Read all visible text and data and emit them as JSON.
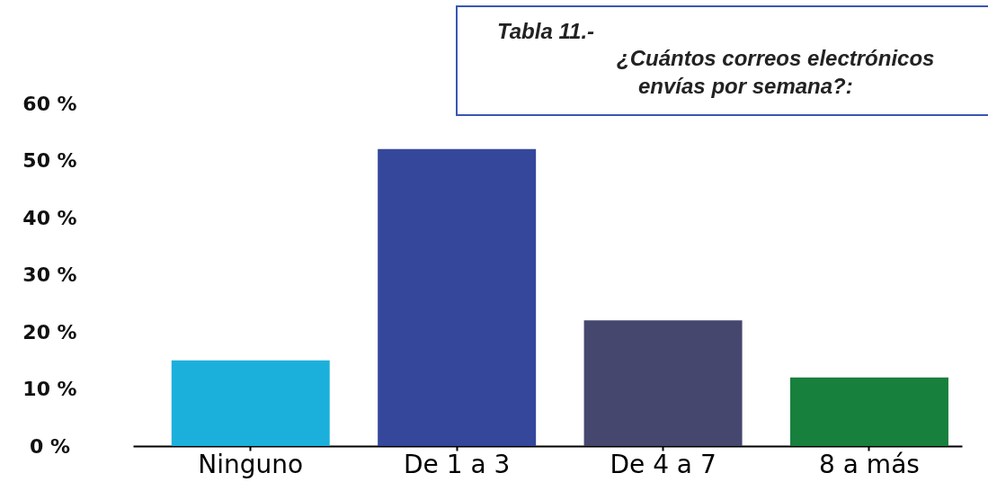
{
  "chart_data": {
    "type": "bar",
    "title": "Tabla 11.-",
    "subtitle": "¿Cuántos correos electrónicos\nenvías por semana?:",
    "categories": [
      "Ninguno",
      "De 1 a 3",
      "De 4 a 7",
      "8 a más"
    ],
    "values": [
      15,
      52,
      22,
      12
    ],
    "colors": [
      "#1bb0dc",
      "#35479b",
      "#45476e",
      "#17803d"
    ],
    "ylim": [
      0,
      60
    ],
    "yticks": [
      {
        "value": 0,
        "label": "0 %"
      },
      {
        "value": 10,
        "label": "10 %"
      },
      {
        "value": 20,
        "label": "20 %"
      },
      {
        "value": 30,
        "label": "30 %"
      },
      {
        "value": 40,
        "label": "40 %"
      },
      {
        "value": 50,
        "label": "50 %"
      },
      {
        "value": 60,
        "label": "60 %"
      }
    ]
  }
}
